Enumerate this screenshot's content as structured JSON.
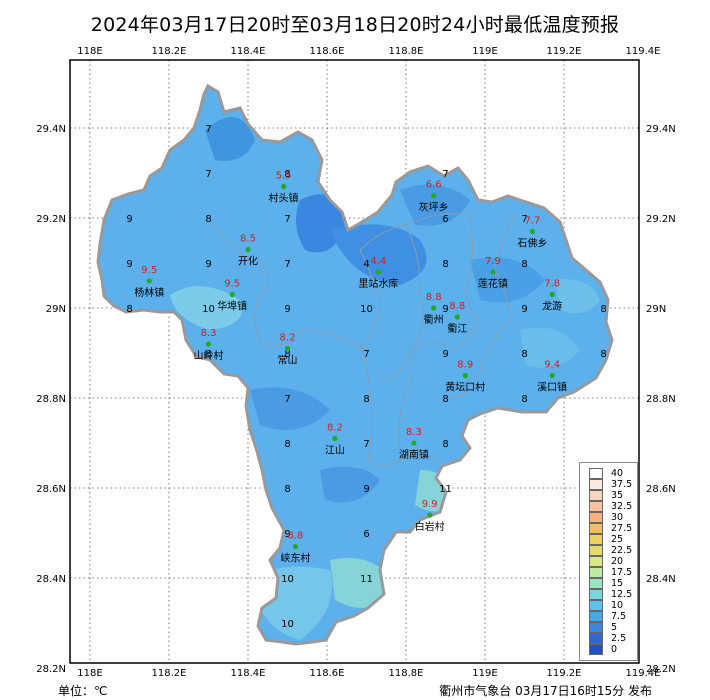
{
  "title": "2024年03月17日20时至03月18日20时24小时最低温度预报",
  "unit_label": "单位：℃",
  "footer": "衢州市气象台 03月17日16时15分 发布",
  "axes": {
    "top_lon": [
      "118E",
      "118.2E",
      "118.4E",
      "118.6E",
      "118.8E",
      "119E",
      "119.2E",
      "119.4E"
    ],
    "bottom_lon": [
      "118E",
      "118.2E",
      "118.4E",
      "118.6E",
      "118.8E",
      "119E",
      "119.2E",
      "119.4E"
    ],
    "left_lat": [
      "29.4N",
      "29.2N",
      "29N",
      "28.8N",
      "28.6N",
      "28.4N",
      "28.2N"
    ],
    "right_lat": [
      "29.4N",
      "29.2N",
      "29N",
      "28.8N",
      "28.6N",
      "28.4N",
      "28.2N"
    ]
  },
  "colors": {
    "border": "#999999",
    "county_line": "#8a9db0",
    "region_base": "#5cb0ec",
    "station_dot": "#22aa22",
    "station_value": "#cc2222"
  },
  "legend": [
    {
      "label": "40",
      "color": "#ffffff"
    },
    {
      "label": "37.5",
      "color": "#fde9dc"
    },
    {
      "label": "35",
      "color": "#fcd6bc"
    },
    {
      "label": "32.5",
      "color": "#f9c39d"
    },
    {
      "label": "30",
      "color": "#f6b27e"
    },
    {
      "label": "27.5",
      "color": "#f2c063"
    },
    {
      "label": "25",
      "color": "#edd060"
    },
    {
      "label": "22.5",
      "color": "#e6dc6a"
    },
    {
      "label": "20",
      "color": "#d9e885"
    },
    {
      "label": "17.5",
      "color": "#bdeba4"
    },
    {
      "label": "15",
      "color": "#98e4c2"
    },
    {
      "label": "12.5",
      "color": "#7ad6dc"
    },
    {
      "label": "10",
      "color": "#5cc3ec"
    },
    {
      "label": "7.5",
      "color": "#4aa8ea"
    },
    {
      "label": "5",
      "color": "#3a86e0"
    },
    {
      "label": "2.5",
      "color": "#2e68d4"
    },
    {
      "label": "0",
      "color": "#2450c4"
    }
  ],
  "grid_values": [
    {
      "v": "7",
      "lon": 118.3,
      "lat": 29.4
    },
    {
      "v": "7",
      "lon": 118.3,
      "lat": 29.3
    },
    {
      "v": "8",
      "lon": 118.5,
      "lat": 29.3
    },
    {
      "v": "9",
      "lon": 118.1,
      "lat": 29.2
    },
    {
      "v": "8",
      "lon": 118.3,
      "lat": 29.2
    },
    {
      "v": "7",
      "lon": 118.5,
      "lat": 29.2
    },
    {
      "v": "9",
      "lon": 118.1,
      "lat": 29.1
    },
    {
      "v": "9",
      "lon": 118.3,
      "lat": 29.1
    },
    {
      "v": "7",
      "lon": 118.5,
      "lat": 29.1
    },
    {
      "v": "8",
      "lon": 118.1,
      "lat": 29.0
    },
    {
      "v": "10",
      "lon": 118.3,
      "lat": 29.0
    },
    {
      "v": "9",
      "lon": 118.5,
      "lat": 29.0
    },
    {
      "v": "10",
      "lon": 118.7,
      "lat": 29.0
    },
    {
      "v": "8",
      "lon": 118.3,
      "lat": 28.9
    },
    {
      "v": "8",
      "lon": 118.5,
      "lat": 28.9
    },
    {
      "v": "7",
      "lon": 118.7,
      "lat": 28.9
    },
    {
      "v": "7",
      "lon": 118.5,
      "lat": 28.8
    },
    {
      "v": "8",
      "lon": 118.7,
      "lat": 28.8
    },
    {
      "v": "8",
      "lon": 118.5,
      "lat": 28.7
    },
    {
      "v": "7",
      "lon": 118.7,
      "lat": 28.7
    },
    {
      "v": "8",
      "lon": 118.5,
      "lat": 28.6
    },
    {
      "v": "9",
      "lon": 118.7,
      "lat": 28.6
    },
    {
      "v": "9",
      "lon": 118.5,
      "lat": 28.5
    },
    {
      "v": "6",
      "lon": 118.7,
      "lat": 28.5
    },
    {
      "v": "10",
      "lon": 118.5,
      "lat": 28.4
    },
    {
      "v": "11",
      "lon": 118.7,
      "lat": 28.4
    },
    {
      "v": "10",
      "lon": 118.5,
      "lat": 28.3
    },
    {
      "v": "7",
      "lon": 118.9,
      "lat": 29.3
    },
    {
      "v": "6",
      "lon": 118.9,
      "lat": 29.2
    },
    {
      "v": "7",
      "lon": 119.1,
      "lat": 29.2
    },
    {
      "v": "4",
      "lon": 118.7,
      "lat": 29.1
    },
    {
      "v": "8",
      "lon": 118.9,
      "lat": 29.1
    },
    {
      "v": "8",
      "lon": 119.1,
      "lat": 29.1
    },
    {
      "v": "9",
      "lon": 118.9,
      "lat": 29.0
    },
    {
      "v": "9",
      "lon": 119.1,
      "lat": 29.0
    },
    {
      "v": "8",
      "lon": 119.3,
      "lat": 29.0
    },
    {
      "v": "9",
      "lon": 118.9,
      "lat": 28.9
    },
    {
      "v": "8",
      "lon": 119.1,
      "lat": 28.9
    },
    {
      "v": "8",
      "lon": 119.3,
      "lat": 28.9
    },
    {
      "v": "8",
      "lon": 118.9,
      "lat": 28.8
    },
    {
      "v": "8",
      "lon": 119.1,
      "lat": 28.8
    },
    {
      "v": "8",
      "lon": 118.9,
      "lat": 28.7
    },
    {
      "v": "11",
      "lon": 118.9,
      "lat": 28.6
    }
  ],
  "stations": [
    {
      "name": "村头镇",
      "value": "5.5",
      "lon": 118.49,
      "lat": 29.27
    },
    {
      "name": "灰坪乡",
      "value": "6.6",
      "lon": 118.87,
      "lat": 29.25
    },
    {
      "name": "石佛乡",
      "value": "7.7",
      "lon": 119.12,
      "lat": 29.17
    },
    {
      "name": "开化",
      "value": "8.5",
      "lon": 118.4,
      "lat": 29.13
    },
    {
      "name": "杨林镇",
      "value": "9.5",
      "lon": 118.15,
      "lat": 29.06
    },
    {
      "name": "华埠镇",
      "value": "9.5",
      "lon": 118.36,
      "lat": 29.03
    },
    {
      "name": "里站水库",
      "value": "4.4",
      "lon": 118.73,
      "lat": 29.08
    },
    {
      "name": "莲花镇",
      "value": "7.9",
      "lon": 119.02,
      "lat": 29.08
    },
    {
      "name": "龙游",
      "value": "7.8",
      "lon": 119.17,
      "lat": 29.03
    },
    {
      "name": "衢州",
      "value": "8.8",
      "lon": 118.87,
      "lat": 29.0
    },
    {
      "name": "衢江",
      "value": "8.8",
      "lon": 118.93,
      "lat": 28.98
    },
    {
      "name": "山岭村",
      "value": "8.3",
      "lon": 118.3,
      "lat": 28.92
    },
    {
      "name": "常山",
      "value": "8.2",
      "lon": 118.5,
      "lat": 28.91
    },
    {
      "name": "黄坛口村",
      "value": "8.9",
      "lon": 118.95,
      "lat": 28.85
    },
    {
      "name": "溪口镇",
      "value": "9.4",
      "lon": 119.17,
      "lat": 28.85
    },
    {
      "name": "江山",
      "value": "8.2",
      "lon": 118.62,
      "lat": 28.71
    },
    {
      "name": "湖南镇",
      "value": "8.3",
      "lon": 118.82,
      "lat": 28.7
    },
    {
      "name": "白岩村",
      "value": "9.9",
      "lon": 118.86,
      "lat": 28.54
    },
    {
      "name": "峡东村",
      "value": "8.8",
      "lon": 118.52,
      "lat": 28.47
    }
  ]
}
